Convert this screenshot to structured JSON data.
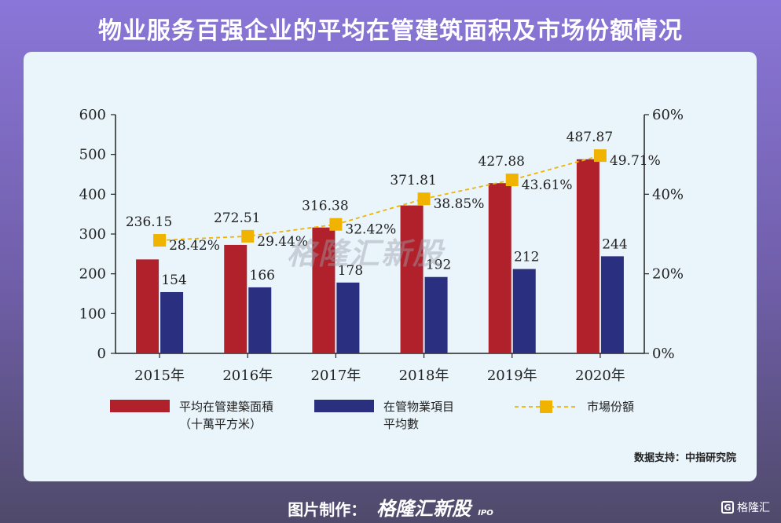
{
  "page": {
    "title": "物业服务百强企业的平均在管建筑面积及市场份额情况",
    "source": "数据支持：中指研究院",
    "footer_prefix": "图片制作：",
    "footer_brand": "格隆汇新股",
    "footer_ipo": "IPO",
    "corner_logo": "格隆汇",
    "watermark": "格隆汇新股"
  },
  "chart_data": {
    "type": "bar",
    "categories": [
      "2015年",
      "2016年",
      "2017年",
      "2018年",
      "2019年",
      "2020年"
    ],
    "series": [
      {
        "name": "平均在管建築面積（十萬平方米）",
        "legend_lines": [
          "平均在管建築面積",
          "（十萬平方米）"
        ],
        "kind": "bar",
        "axis": "left",
        "color": "#b0212b",
        "values": [
          236.15,
          272.51,
          316.38,
          371.81,
          427.88,
          487.87
        ],
        "labels": [
          "236.15",
          "272.51",
          "316.38",
          "371.81",
          "427.88",
          "487.87"
        ]
      },
      {
        "name": "在管物業項目平均數",
        "legend_lines": [
          "在管物業項目",
          "平均數"
        ],
        "kind": "bar",
        "axis": "left",
        "color": "#2a2f80",
        "values": [
          154,
          166,
          178,
          192,
          212,
          244
        ],
        "labels": [
          "154",
          "166",
          "178",
          "192",
          "212",
          "244"
        ]
      },
      {
        "name": "市場份額",
        "legend_lines": [
          "市場份額"
        ],
        "kind": "line",
        "axis": "right",
        "color": "#f0b400",
        "values": [
          28.42,
          29.44,
          32.42,
          38.85,
          43.61,
          49.71
        ],
        "labels": [
          "28.42%",
          "29.44%",
          "32.42%",
          "38.85%",
          "43.61%",
          "49.71%"
        ]
      }
    ],
    "ylim_left": [
      0,
      600
    ],
    "yticks_left": [
      "0",
      "100",
      "200",
      "300",
      "400",
      "500",
      "600"
    ],
    "ylim_right": [
      0,
      60
    ],
    "yticks_right": [
      "0%",
      "20%",
      "40%",
      "60%"
    ],
    "grid": false,
    "legend_position": "bottom"
  }
}
